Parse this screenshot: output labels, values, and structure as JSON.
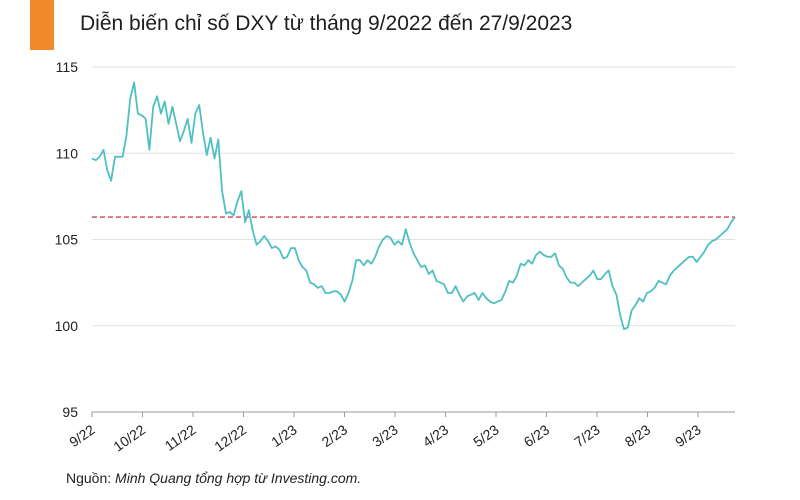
{
  "header": {
    "title": "Diễn biến chỉ số DXY từ tháng 9/2022 đến 27/9/2023",
    "accent_color": "#f08a2a"
  },
  "footer": {
    "source_label": "Nguồn:",
    "source_text": "Minh Quang tổng hợp từ Investing.com."
  },
  "chart_data": {
    "type": "line",
    "title": "Diễn biến chỉ số DXY từ tháng 9/2022 đến 27/9/2023",
    "xlabel": "",
    "ylabel": "",
    "ylim": [
      95,
      115
    ],
    "yticks": [
      95,
      100,
      105,
      110,
      115
    ],
    "xtick_labels": [
      "9/22",
      "10/22",
      "11/22",
      "12/22",
      "1/23",
      "2/23",
      "3/23",
      "4/23",
      "5/23",
      "6/23",
      "7/23",
      "8/23",
      "9/23"
    ],
    "grid": "horizontal",
    "line_color": "#4fc0c0",
    "reference_line": {
      "value": 106.3,
      "color": "#d2424e",
      "style": "dashed"
    },
    "series": [
      {
        "values": [
          109.7,
          109.6,
          109.8,
          110.2,
          109.0,
          108.4,
          109.8,
          109.8,
          109.8,
          111.0,
          113.2,
          114.1,
          112.3,
          112.2,
          112.0,
          110.2,
          112.7,
          113.3,
          112.3,
          113.0,
          111.7,
          112.7,
          111.7,
          110.7,
          111.3,
          112.0,
          110.6,
          112.3,
          112.8,
          111.2,
          109.9,
          110.9,
          109.7,
          110.8,
          107.8,
          106.5,
          106.6,
          106.4,
          107.2,
          107.8,
          106.0,
          106.7,
          105.5,
          104.7,
          104.9,
          105.2,
          104.9,
          104.5,
          104.6,
          104.4,
          103.9,
          104.0,
          104.5,
          104.5,
          103.8,
          103.4,
          103.2,
          102.5,
          102.4,
          102.2,
          102.3,
          101.9,
          101.9,
          102.0,
          102.0,
          101.8,
          101.4,
          101.9,
          102.6,
          103.8,
          103.8,
          103.5,
          103.8,
          103.6,
          104.0,
          104.6,
          105.0,
          105.2,
          105.1,
          104.7,
          104.9,
          104.7,
          105.6,
          104.8,
          104.2,
          103.8,
          103.4,
          103.5,
          103.0,
          103.2,
          102.6,
          102.5,
          102.4,
          101.9,
          101.9,
          102.3,
          101.8,
          101.4,
          101.7,
          101.8,
          101.9,
          101.5,
          101.9,
          101.6,
          101.4,
          101.3,
          101.4,
          101.5,
          102.0,
          102.6,
          102.5,
          102.9,
          103.6,
          103.5,
          103.8,
          103.6,
          104.1,
          104.3,
          104.1,
          104.0,
          104.0,
          104.2,
          103.5,
          103.3,
          102.8,
          102.5,
          102.5,
          102.3,
          102.5,
          102.7,
          102.9,
          103.2,
          102.7,
          102.7,
          103.0,
          103.2,
          102.3,
          101.8,
          100.6,
          99.8,
          99.9,
          100.9,
          101.2,
          101.6,
          101.4,
          101.9,
          102.0,
          102.2,
          102.6,
          102.5,
          102.4,
          102.9,
          103.2,
          103.4,
          103.6,
          103.8,
          104.0,
          104.0,
          103.7,
          104.0,
          104.3,
          104.7,
          104.9,
          105.0,
          105.2,
          105.4,
          105.6,
          106.0,
          106.3
        ]
      }
    ]
  }
}
